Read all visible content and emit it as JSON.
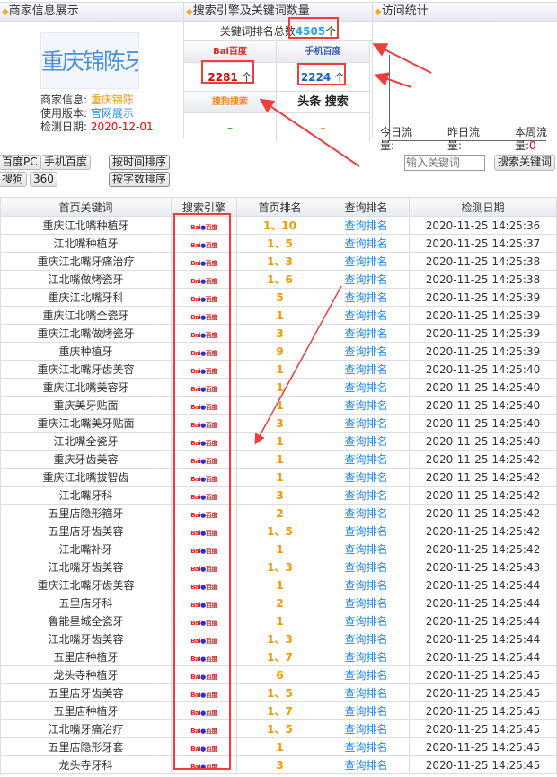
{
  "merchant": {
    "title": "商家信息展示",
    "logo_text": "重庆锦陈牙科",
    "info_label": "商家信息:",
    "info_value": "重庆锦陈",
    "version_label": "使用版本:",
    "version_value": "官网展示",
    "date_label": "检测日期:",
    "date_value": "2020-12-01"
  },
  "engines": {
    "title": "搜索引擎及关键词数量",
    "total_label": "关键词排名总数",
    "total_value": "4505",
    "unit": "个",
    "baidu_logo": "Bai百度",
    "baidu_count": "2281",
    "mobile_logo": "手机百度",
    "mobile_count": "2224",
    "sogou_logo": "搜狗搜索",
    "sogou_value": "–",
    "toutiao_logo": "头条 搜索",
    "toutiao_value": "–"
  },
  "visits": {
    "title": "访问统计",
    "today": "今日流量:",
    "yesterday": "昨日流量:",
    "week": "本周流量:",
    "week_value": "0"
  },
  "filters": {
    "baidu_pc": "百度PC",
    "mobile_baidu": "手机百度",
    "sogou": "搜狗",
    "s360": "360",
    "sort_time": "按时间排序",
    "sort_chars": "按字数排序",
    "keyword_placeholder": "输入关键词",
    "search_btn": "搜索关键词"
  },
  "table": {
    "headers": [
      "首页关键词",
      "搜索引擎",
      "首页排名",
      "查询排名",
      "检测日期"
    ],
    "engine_icon": "baidu-logo",
    "query_label": "查询排名",
    "rows": [
      [
        "重庆江北嘴种植牙",
        "1、10",
        "2020-11-25 14:25:36"
      ],
      [
        "江北嘴种植牙",
        "1、5",
        "2020-11-25 14:25:37"
      ],
      [
        "重庆江北嘴牙痛治疗",
        "1、3",
        "2020-11-25 14:25:38"
      ],
      [
        "江北嘴做烤瓷牙",
        "1、6",
        "2020-11-25 14:25:38"
      ],
      [
        "重庆江北嘴牙科",
        "5",
        "2020-11-25 14:25:39"
      ],
      [
        "重庆江北嘴全瓷牙",
        "1",
        "2020-11-25 14:25:39"
      ],
      [
        "重庆江北嘴做烤瓷牙",
        "3",
        "2020-11-25 14:25:39"
      ],
      [
        "重庆种植牙",
        "9",
        "2020-11-25 14:25:39"
      ],
      [
        "重庆江北嘴牙齿美容",
        "1",
        "2020-11-25 14:25:40"
      ],
      [
        "重庆江北嘴美容牙",
        "1",
        "2020-11-25 14:25:40"
      ],
      [
        "重庆美牙贴面",
        "1",
        "2020-11-25 14:25:40"
      ],
      [
        "重庆江北嘴美牙贴面",
        "3",
        "2020-11-25 14:25:40"
      ],
      [
        "江北嘴全瓷牙",
        "1",
        "2020-11-25 14:25:40"
      ],
      [
        "重庆牙齿美容",
        "1",
        "2020-11-25 14:25:42"
      ],
      [
        "重庆江北嘴拔智齿",
        "1",
        "2020-11-25 14:25:42"
      ],
      [
        "江北嘴牙科",
        "3",
        "2020-11-25 14:25:42"
      ],
      [
        "五里店隐形箍牙",
        "2",
        "2020-11-25 14:25:42"
      ],
      [
        "五里店牙齿美容",
        "1、5",
        "2020-11-25 14:25:42"
      ],
      [
        "江北嘴补牙",
        "1",
        "2020-11-25 14:25:42"
      ],
      [
        "江北嘴牙齿美容",
        "1、3",
        "2020-11-25 14:25:43"
      ],
      [
        "重庆江北嘴牙齿美容",
        "1",
        "2020-11-25 14:25:44"
      ],
      [
        "五里店牙科",
        "2",
        "2020-11-25 14:25:44"
      ],
      [
        "鲁能星城全瓷牙",
        "1",
        "2020-11-25 14:25:44"
      ],
      [
        "江北嘴牙齿美容",
        "1、3",
        "2020-11-25 14:25:44"
      ],
      [
        "五里店种植牙",
        "1、7",
        "2020-11-25 14:25:44"
      ],
      [
        "龙头寺种植牙",
        "6",
        "2020-11-25 14:25:45"
      ],
      [
        "五里店牙齿美容",
        "1、5",
        "2020-11-25 14:25:45"
      ],
      [
        "五里店种植牙",
        "1、7",
        "2020-11-25 14:25:45"
      ],
      [
        "江北嘴牙痛治疗",
        "1、5",
        "2020-11-25 14:25:45"
      ],
      [
        "五里店隐形牙套",
        "1",
        "2020-11-25 14:25:45"
      ],
      [
        "龙头寺牙科",
        "3",
        "2020-11-25 14:25:45"
      ]
    ]
  },
  "colors": {
    "annotation": "#f03c3c",
    "rank": "#f39800",
    "link": "#1e88e5",
    "accent_orange": "#f5a623"
  }
}
